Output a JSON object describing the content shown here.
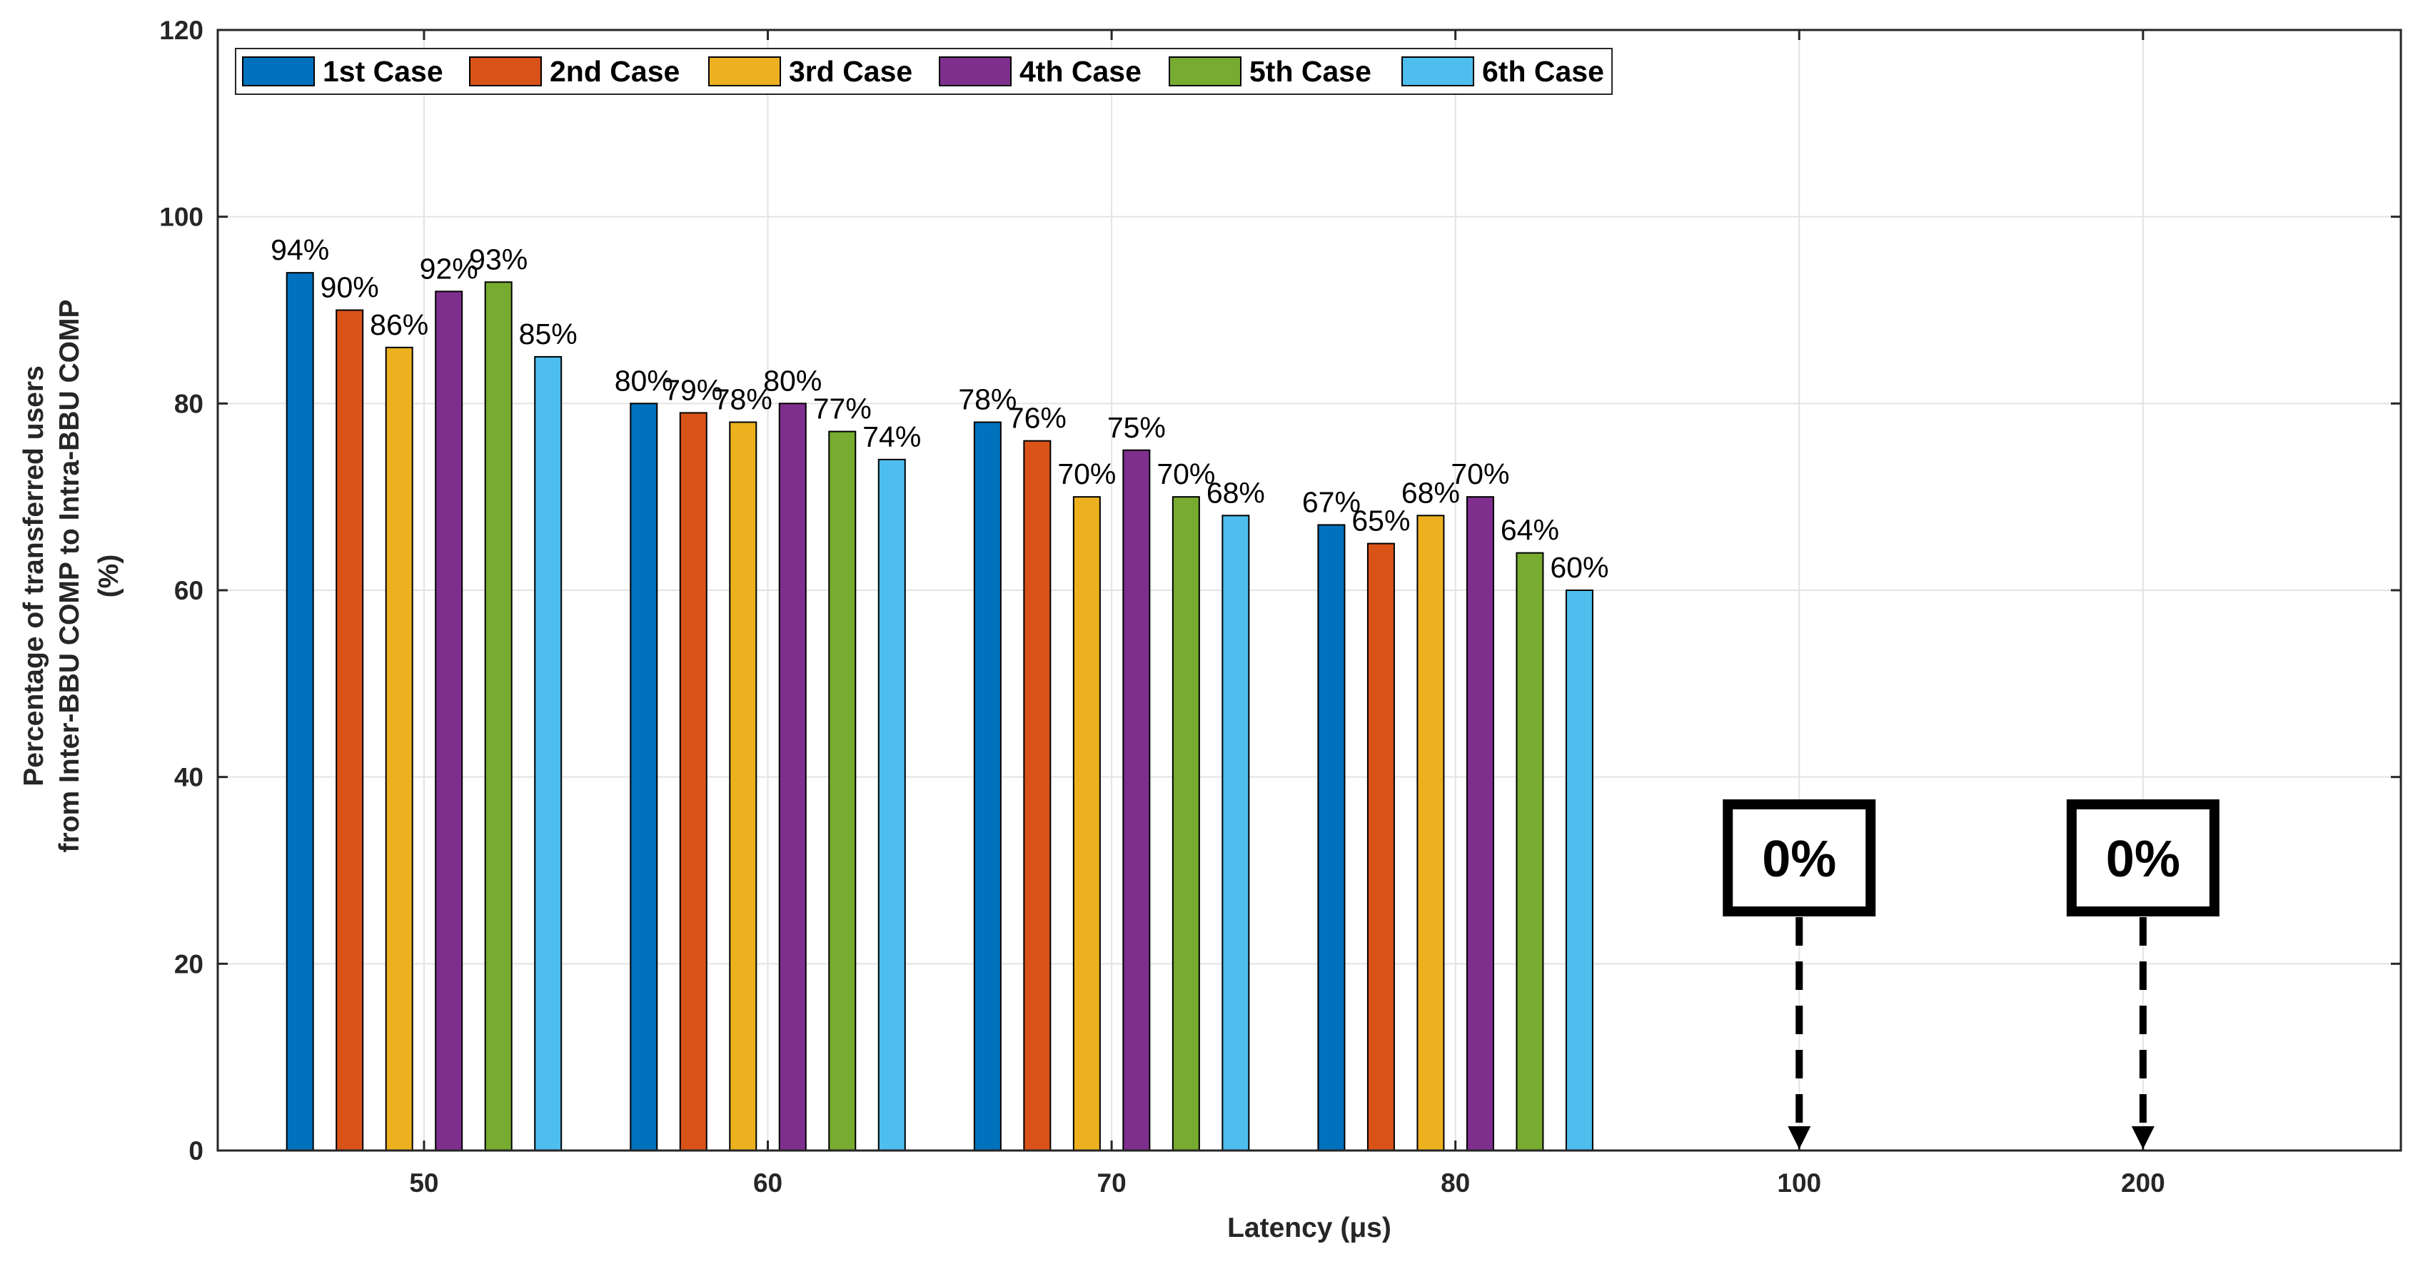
{
  "chart_data": {
    "type": "bar",
    "title": "",
    "xlabel": "Latency (μs)",
    "ylabel": [
      "Percentage of transferred users",
      "from Inter-BBU COMP to Intra-BBU COMP",
      "(%)"
    ],
    "categories": [
      "50",
      "60",
      "70",
      "80",
      "100",
      "200"
    ],
    "ylim": [
      0,
      120
    ],
    "yticks": [
      0,
      20,
      40,
      60,
      80,
      100,
      120
    ],
    "grid": true,
    "legend_position": "top-left",
    "series": [
      {
        "name": "1st Case",
        "color": "#0072BD",
        "values": [
          94,
          80,
          78,
          67,
          0,
          0
        ]
      },
      {
        "name": "2nd Case",
        "color": "#D95319",
        "values": [
          90,
          79,
          76,
          65,
          0,
          0
        ]
      },
      {
        "name": "3rd Case",
        "color": "#EDB120",
        "values": [
          86,
          78,
          70,
          68,
          0,
          0
        ]
      },
      {
        "name": "4th Case",
        "color": "#7E2F8E",
        "values": [
          92,
          80,
          75,
          70,
          0,
          0
        ]
      },
      {
        "name": "5th Case",
        "color": "#77AC30",
        "values": [
          93,
          77,
          70,
          64,
          0,
          0
        ]
      },
      {
        "name": "6th Case",
        "color": "#4DBEEE",
        "values": [
          85,
          74,
          68,
          60,
          0,
          0
        ]
      }
    ],
    "data_labels": [
      [
        "94%",
        "80%",
        "78%",
        "67%"
      ],
      [
        "90%",
        "79%",
        "76%",
        "65%"
      ],
      [
        "86%",
        "78%",
        "70%",
        "68%"
      ],
      [
        "92%",
        "80%",
        "75%",
        "70%"
      ],
      [
        "93%",
        "77%",
        "70%",
        "64%"
      ],
      [
        "85%",
        "74%",
        "68%",
        "60%"
      ]
    ],
    "annotations": [
      {
        "category": "100",
        "text": "0%"
      },
      {
        "category": "200",
        "text": "0%"
      }
    ]
  }
}
